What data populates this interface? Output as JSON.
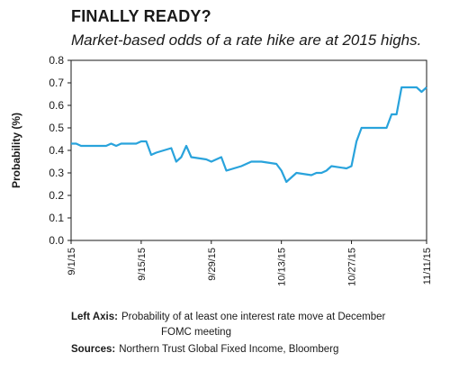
{
  "header": {
    "title": "FINALLY READY?",
    "subtitle": "Market-based odds of a rate hike are at 2015 highs."
  },
  "notes": {
    "left_axis_label": "Left Axis:",
    "left_axis_text_1": "Probability of at least one interest rate move at December",
    "left_axis_text_2": "FOMC meeting",
    "sources_label": "Sources:",
    "sources_text": "Northern Trust Global Fixed Income, Bloomberg"
  },
  "colors": {
    "line": "#29a3dc",
    "axis": "#1a1a1a"
  },
  "chart_data": {
    "type": "line",
    "ylabel": "Probability (%)",
    "ylim": [
      0,
      0.8
    ],
    "yticks": [
      "0.0",
      "0.1",
      "0.2",
      "0.3",
      "0.4",
      "0.5",
      "0.6",
      "0.7",
      "0.8"
    ],
    "xlim": [
      "2015-09-01",
      "2015-11-11"
    ],
    "xticks": [
      "9/1/15",
      "9/15/15",
      "9/29/15",
      "10/13/15",
      "10/27/15",
      "11/11/15"
    ],
    "grid": false,
    "x": [
      "2015-09-01",
      "2015-09-02",
      "2015-09-03",
      "2015-09-04",
      "2015-09-08",
      "2015-09-09",
      "2015-09-10",
      "2015-09-11",
      "2015-09-14",
      "2015-09-15",
      "2015-09-16",
      "2015-09-17",
      "2015-09-18",
      "2015-09-21",
      "2015-09-22",
      "2015-09-23",
      "2015-09-24",
      "2015-09-25",
      "2015-09-28",
      "2015-09-29",
      "2015-09-30",
      "2015-10-01",
      "2015-10-02",
      "2015-10-05",
      "2015-10-06",
      "2015-10-07",
      "2015-10-08",
      "2015-10-09",
      "2015-10-12",
      "2015-10-13",
      "2015-10-14",
      "2015-10-15",
      "2015-10-16",
      "2015-10-19",
      "2015-10-20",
      "2015-10-21",
      "2015-10-22",
      "2015-10-23",
      "2015-10-26",
      "2015-10-27",
      "2015-10-28",
      "2015-10-29",
      "2015-10-30",
      "2015-11-02",
      "2015-11-03",
      "2015-11-04",
      "2015-11-05",
      "2015-11-06",
      "2015-11-09",
      "2015-11-10",
      "2015-11-11"
    ],
    "series": [
      {
        "values": [
          0.43,
          0.43,
          0.42,
          0.42,
          0.42,
          0.43,
          0.42,
          0.43,
          0.43,
          0.44,
          0.44,
          0.38,
          0.39,
          0.41,
          0.35,
          0.37,
          0.42,
          0.37,
          0.36,
          0.35,
          0.36,
          0.37,
          0.31,
          0.33,
          0.34,
          0.35,
          0.35,
          0.35,
          0.34,
          0.31,
          0.26,
          0.28,
          0.3,
          0.29,
          0.3,
          0.3,
          0.31,
          0.33,
          0.32,
          0.33,
          0.44,
          0.5,
          0.5,
          0.5,
          0.5,
          0.56,
          0.56,
          0.68,
          0.68,
          0.66,
          0.68
        ]
      }
    ]
  }
}
